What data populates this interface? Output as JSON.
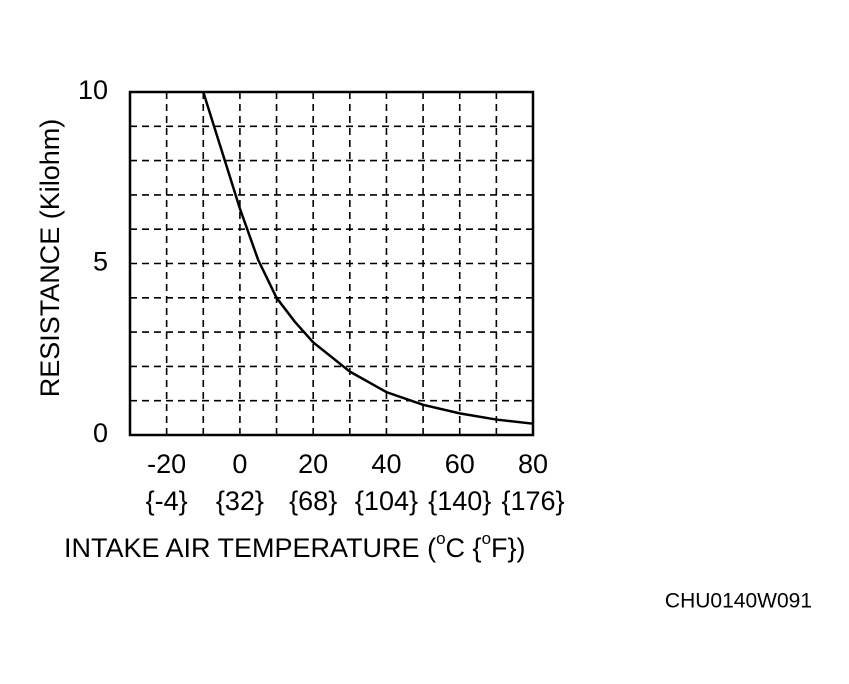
{
  "chart_data": {
    "type": "line",
    "x": [
      -10,
      -5,
      0,
      5,
      10,
      15,
      20,
      30,
      40,
      50,
      60,
      70,
      80
    ],
    "values": [
      10,
      8.3,
      6.6,
      5.1,
      4.0,
      3.3,
      2.7,
      1.85,
      1.25,
      0.88,
      0.63,
      0.45,
      0.33
    ],
    "color": "#000000",
    "xlim": [
      -30,
      80
    ],
    "xticks": [
      -20,
      0,
      20,
      40,
      60,
      80
    ],
    "x_secondary_labels": [
      "{-4}",
      "{32}",
      "{68}",
      "{104}",
      "{140}",
      "{176}"
    ],
    "ylim": [
      0,
      10
    ],
    "yticks": [
      0,
      5,
      10
    ],
    "xgrid": [
      -20,
      -10,
      0,
      10,
      20,
      30,
      40,
      50,
      60,
      70
    ],
    "ygrid": [
      1,
      2,
      3,
      4,
      5,
      6,
      7,
      8,
      9
    ],
    "ylabel": "RESISTANCE (Kilohm)",
    "xlabel_parts": [
      "INTAKE AIR TEMPERATURE (",
      "o",
      "C {",
      "o",
      "F})"
    ],
    "annotation": "CHU0140W091"
  }
}
